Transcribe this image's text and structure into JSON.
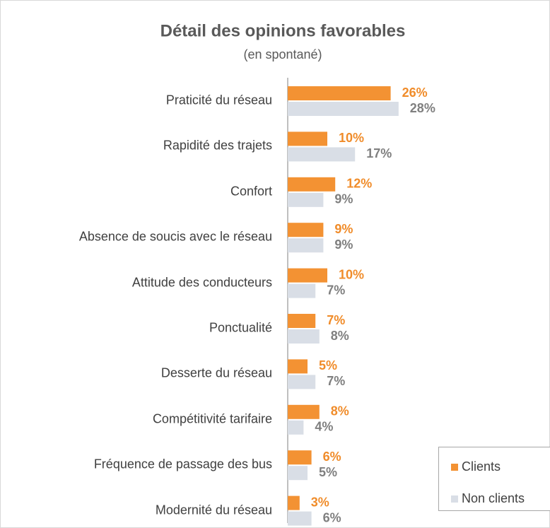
{
  "chart_data": {
    "type": "barh",
    "title": "Détail des opinions favorables",
    "subtitle": "(en spontané)",
    "categories": [
      "Praticité du réseau",
      "Rapidité des trajets",
      "Confort",
      "Absence de soucis avec le réseau",
      "Attitude des conducteurs",
      "Ponctualité",
      "Desserte du réseau",
      "Compétitivité tarifaire",
      "Fréquence de passage des bus",
      "Modernité du réseau"
    ],
    "series": [
      {
        "name": "Clients",
        "color": "#f39233",
        "label_color": "#f08c2a",
        "values": [
          26,
          10,
          12,
          9,
          10,
          7,
          5,
          8,
          6,
          3
        ],
        "value_labels": [
          "26%",
          "10%",
          "12%",
          "9%",
          "10%",
          "7%",
          "5%",
          "8%",
          "6%",
          "3%"
        ]
      },
      {
        "name": "Non clients",
        "color": "#d9dee6",
        "label_color": "#7f7f7f",
        "values": [
          28,
          17,
          9,
          9,
          7,
          8,
          7,
          4,
          5,
          6
        ],
        "value_labels": [
          "28%",
          "17%",
          "9%",
          "9%",
          "7%",
          "8%",
          "7%",
          "4%",
          "5%",
          "6%"
        ]
      }
    ],
    "legend": "bottom-right"
  }
}
